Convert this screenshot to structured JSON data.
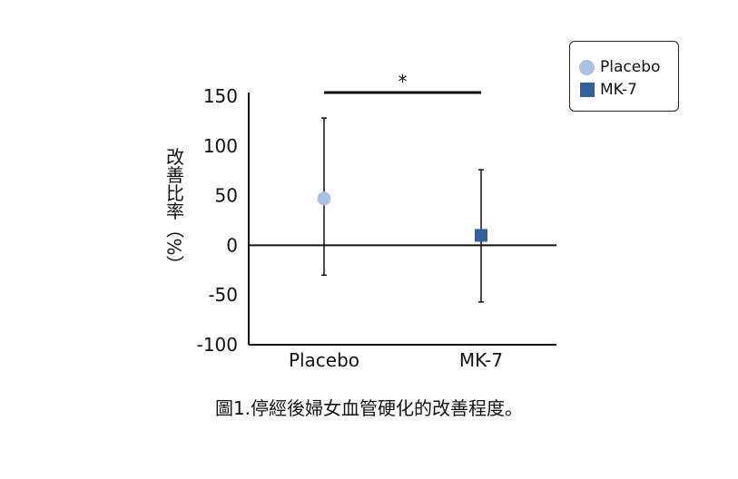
{
  "chart_data": {
    "type": "scatter",
    "categories": [
      "Placebo",
      "MK-7"
    ],
    "series": [
      {
        "name": "Placebo",
        "category": "Placebo",
        "value": 47,
        "error_low": -30,
        "error_high": 128,
        "marker": "circle",
        "color": "#a9c2e4"
      },
      {
        "name": "MK-7",
        "category": "MK-7",
        "value": 10,
        "error_low": -57,
        "error_high": 76,
        "marker": "square",
        "color": "#34609e"
      }
    ],
    "ylabel": "改善比率（%）",
    "ylim": [
      -100,
      150
    ],
    "yticks": [
      150,
      100,
      50,
      0,
      -50,
      -100
    ],
    "yticks_labels": [
      "150",
      "100",
      "50",
      "0",
      "-50",
      "-100"
    ],
    "significance": {
      "label": "*",
      "from": "Placebo",
      "to": "MK-7"
    },
    "legend": {
      "position": "top-right"
    },
    "caption": "圖1.停經後婦女血管硬化的改善程度。"
  }
}
